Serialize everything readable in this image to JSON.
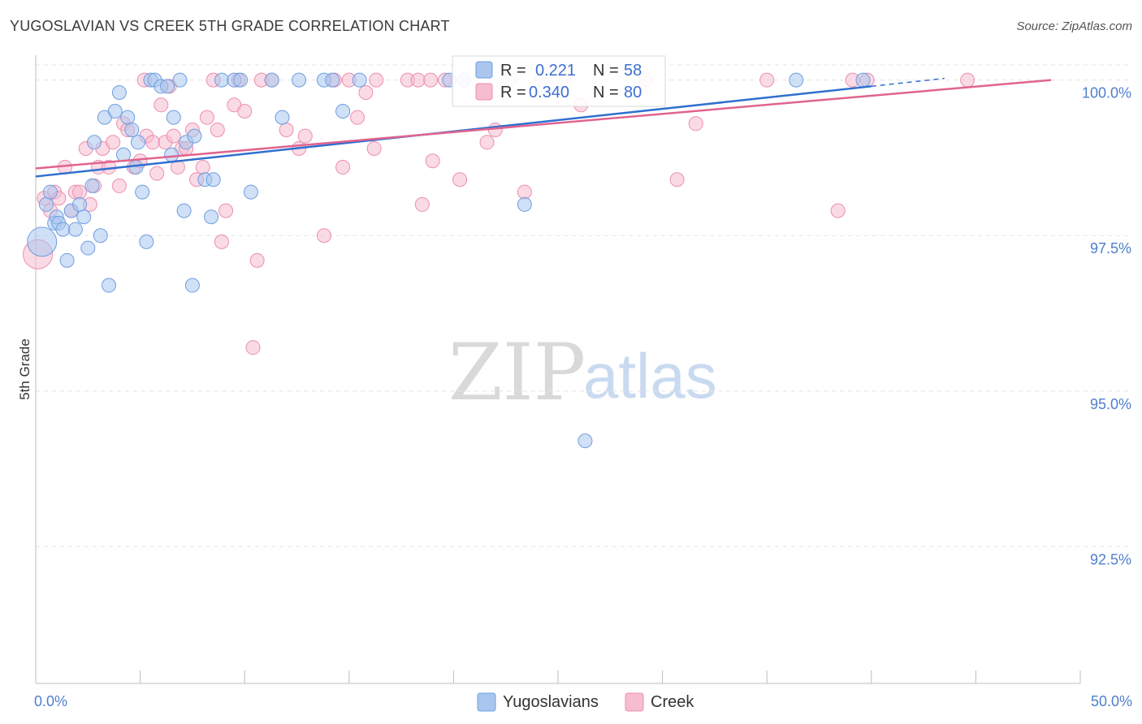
{
  "header": {
    "title": "YUGOSLAVIAN VS CREEK 5TH GRADE CORRELATION CHART",
    "source": "Source: ZipAtlas.com"
  },
  "colors": {
    "blue_fill": "#a9c6ee",
    "blue_stroke": "#6f9ee0",
    "blue_line": "#2f6fd0",
    "pink_fill": "#f6bcd0",
    "pink_stroke": "#ec8fae",
    "pink_line": "#e0648e",
    "tick_text": "#4f7fcc",
    "grid": "#e4e4e4"
  },
  "legend": {
    "r_label": "R =",
    "n_label": "N =",
    "yugoslavian_r": "0.221",
    "yugoslavian_n": "58",
    "creek_r": "0.340",
    "creek_n": "80"
  },
  "watermark": {
    "zip": "ZIP",
    "atlas": "atlas"
  },
  "chart_data": {
    "type": "scatter",
    "title": "YUGOSLAVIAN VS CREEK 5TH GRADE CORRELATION CHART",
    "xlabel": "",
    "ylabel": "5th Grade",
    "xlim": [
      0,
      50
    ],
    "ylim": [
      90.3,
      100.4
    ],
    "x_tick_labels": [
      "0.0%",
      "50.0%"
    ],
    "y_ticks": [
      92.5,
      95.0,
      97.5,
      100.0
    ],
    "y_tick_labels": [
      "92.5%",
      "95.0%",
      "97.5%",
      "100.0%"
    ],
    "grid": true,
    "legend_entries": [
      "Yugoslavians",
      "Creek"
    ],
    "series": [
      {
        "name": "Yugoslavians",
        "trend": {
          "x0": 0,
          "y0": 98.45,
          "x1": 40,
          "y1": 99.9
        },
        "points": [
          [
            0.3,
            97.4
          ],
          [
            0.5,
            98.0
          ],
          [
            0.7,
            98.2
          ],
          [
            0.9,
            97.7
          ],
          [
            1.0,
            97.8
          ],
          [
            1.1,
            97.7
          ],
          [
            1.3,
            97.6
          ],
          [
            1.5,
            97.1
          ],
          [
            1.7,
            97.9
          ],
          [
            1.9,
            97.6
          ],
          [
            2.1,
            98.0
          ],
          [
            2.3,
            97.8
          ],
          [
            2.5,
            97.3
          ],
          [
            2.7,
            98.3
          ],
          [
            2.8,
            99.0
          ],
          [
            3.1,
            97.5
          ],
          [
            3.3,
            99.4
          ],
          [
            3.5,
            96.7
          ],
          [
            3.8,
            99.5
          ],
          [
            4.0,
            99.8
          ],
          [
            4.2,
            98.8
          ],
          [
            4.4,
            99.4
          ],
          [
            4.6,
            99.2
          ],
          [
            4.8,
            98.6
          ],
          [
            4.9,
            99.0
          ],
          [
            5.1,
            98.2
          ],
          [
            5.3,
            97.4
          ],
          [
            5.5,
            100.0
          ],
          [
            5.7,
            100.0
          ],
          [
            6.0,
            99.9
          ],
          [
            6.3,
            99.9
          ],
          [
            6.5,
            98.8
          ],
          [
            6.6,
            99.4
          ],
          [
            6.9,
            100.0
          ],
          [
            7.1,
            97.9
          ],
          [
            7.2,
            99.0
          ],
          [
            7.5,
            96.7
          ],
          [
            7.6,
            99.1
          ],
          [
            8.1,
            98.4
          ],
          [
            8.4,
            97.8
          ],
          [
            8.5,
            98.4
          ],
          [
            8.9,
            100.0
          ],
          [
            9.5,
            100.0
          ],
          [
            9.8,
            100.0
          ],
          [
            10.3,
            98.2
          ],
          [
            11.3,
            100.0
          ],
          [
            11.8,
            99.4
          ],
          [
            12.6,
            100.0
          ],
          [
            13.8,
            100.0
          ],
          [
            14.2,
            100.0
          ],
          [
            14.7,
            99.5
          ],
          [
            15.5,
            100.0
          ],
          [
            19.8,
            100.0
          ],
          [
            20.5,
            100.0
          ],
          [
            23.4,
            98.0
          ],
          [
            26.3,
            94.2
          ],
          [
            36.4,
            100.0
          ],
          [
            39.6,
            100.0
          ]
        ]
      },
      {
        "name": "Creek",
        "trend": {
          "x0": 0,
          "y0": 98.58,
          "x1": 48.6,
          "y1": 100.0
        },
        "points": [
          [
            0.1,
            97.2
          ],
          [
            0.4,
            98.1
          ],
          [
            0.7,
            97.9
          ],
          [
            0.9,
            98.2
          ],
          [
            1.1,
            98.1
          ],
          [
            1.4,
            98.6
          ],
          [
            1.7,
            97.9
          ],
          [
            1.9,
            98.2
          ],
          [
            2.1,
            98.2
          ],
          [
            2.4,
            98.9
          ],
          [
            2.6,
            98.0
          ],
          [
            2.8,
            98.3
          ],
          [
            3.0,
            98.6
          ],
          [
            3.2,
            98.9
          ],
          [
            3.5,
            98.6
          ],
          [
            3.7,
            99.0
          ],
          [
            4.0,
            98.3
          ],
          [
            4.2,
            99.3
          ],
          [
            4.4,
            99.2
          ],
          [
            4.7,
            98.6
          ],
          [
            5.0,
            98.7
          ],
          [
            5.2,
            100.0
          ],
          [
            5.3,
            99.1
          ],
          [
            5.6,
            99.0
          ],
          [
            5.8,
            98.5
          ],
          [
            6.0,
            99.6
          ],
          [
            6.2,
            99.0
          ],
          [
            6.4,
            99.9
          ],
          [
            6.6,
            99.1
          ],
          [
            6.8,
            98.6
          ],
          [
            7.0,
            98.9
          ],
          [
            7.2,
            98.9
          ],
          [
            7.5,
            99.2
          ],
          [
            7.7,
            98.4
          ],
          [
            8.0,
            98.6
          ],
          [
            8.2,
            99.4
          ],
          [
            8.5,
            100.0
          ],
          [
            8.7,
            99.2
          ],
          [
            8.9,
            97.4
          ],
          [
            9.1,
            97.9
          ],
          [
            9.5,
            99.6
          ],
          [
            9.7,
            100.0
          ],
          [
            10.0,
            99.5
          ],
          [
            10.4,
            95.7
          ],
          [
            10.6,
            97.1
          ],
          [
            10.8,
            100.0
          ],
          [
            11.3,
            100.0
          ],
          [
            12.0,
            99.2
          ],
          [
            12.6,
            98.9
          ],
          [
            12.9,
            99.1
          ],
          [
            13.8,
            97.5
          ],
          [
            14.3,
            100.0
          ],
          [
            14.7,
            98.6
          ],
          [
            15.0,
            100.0
          ],
          [
            15.4,
            99.4
          ],
          [
            15.8,
            99.8
          ],
          [
            16.2,
            98.9
          ],
          [
            16.3,
            100.0
          ],
          [
            17.8,
            100.0
          ],
          [
            18.3,
            100.0
          ],
          [
            18.5,
            98.0
          ],
          [
            18.9,
            100.0
          ],
          [
            19.0,
            98.7
          ],
          [
            19.6,
            100.0
          ],
          [
            20.3,
            98.4
          ],
          [
            21.6,
            99.0
          ],
          [
            22.0,
            99.2
          ],
          [
            22.7,
            100.0
          ],
          [
            23.4,
            98.2
          ],
          [
            24.2,
            100.0
          ],
          [
            25.3,
            100.0
          ],
          [
            26.1,
            99.6
          ],
          [
            29.2,
            100.0
          ],
          [
            30.7,
            98.4
          ],
          [
            31.6,
            99.3
          ],
          [
            35.0,
            100.0
          ],
          [
            38.4,
            97.9
          ],
          [
            39.1,
            100.0
          ],
          [
            39.8,
            100.0
          ],
          [
            44.6,
            100.0
          ]
        ]
      }
    ]
  }
}
